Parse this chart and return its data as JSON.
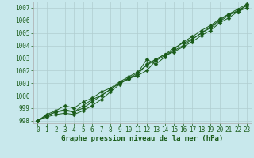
{
  "xlabel": "Graphe pression niveau de la mer (hPa)",
  "ylabel": "",
  "xlim": [
    -0.5,
    23.5
  ],
  "ylim": [
    997.8,
    1007.5
  ],
  "yticks": [
    998,
    999,
    1000,
    1001,
    1002,
    1003,
    1004,
    1005,
    1006,
    1007
  ],
  "xticks": [
    0,
    1,
    2,
    3,
    4,
    5,
    6,
    7,
    8,
    9,
    10,
    11,
    12,
    13,
    14,
    15,
    16,
    17,
    18,
    19,
    20,
    21,
    22,
    23
  ],
  "background_color": "#c8e8ec",
  "grid_color": "#b0cdd0",
  "line_color": "#1a5c1a",
  "series": [
    [
      998.0,
      998.3,
      998.5,
      998.6,
      998.5,
      998.8,
      999.2,
      999.7,
      1000.3,
      1000.9,
      1001.4,
      1001.6,
      1002.0,
      1002.8,
      1003.2,
      1003.5,
      1003.9,
      1004.3,
      1004.8,
      1005.2,
      1005.8,
      1006.2,
      1006.7,
      1007.2
    ],
    [
      998.0,
      998.4,
      998.7,
      998.9,
      998.7,
      999.2,
      999.7,
      1000.0,
      1000.5,
      1001.0,
      1001.3,
      1001.7,
      1002.5,
      1002.9,
      1003.3,
      1003.6,
      1004.0,
      1004.5,
      1005.0,
      1005.5,
      1006.0,
      1006.5,
      1006.7,
      1007.0
    ],
    [
      998.0,
      998.5,
      998.8,
      999.2,
      999.0,
      999.5,
      999.8,
      1000.3,
      1000.6,
      1001.1,
      1001.5,
      1001.9,
      1002.4,
      1002.9,
      1003.3,
      1003.8,
      1004.2,
      1004.5,
      1005.0,
      1005.4,
      1005.9,
      1006.4,
      1006.8,
      1007.2
    ],
    [
      998.0,
      998.4,
      998.7,
      998.8,
      998.7,
      999.0,
      999.5,
      1000.0,
      1000.5,
      1001.0,
      1001.4,
      1001.8,
      1002.9,
      1002.5,
      1003.1,
      1003.7,
      1004.3,
      1004.7,
      1005.2,
      1005.6,
      1006.1,
      1006.5,
      1006.9,
      1007.3
    ]
  ]
}
